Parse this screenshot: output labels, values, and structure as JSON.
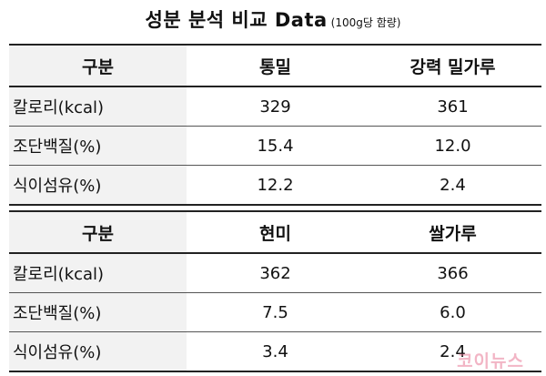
{
  "title": {
    "main": "성분 분석 비교 Data",
    "sub": "(100g당 함량)"
  },
  "table1": {
    "headers": [
      "구분",
      "통밀",
      "강력 밀가루"
    ],
    "rows": [
      [
        "칼로리(kcal)",
        "329",
        "361"
      ],
      [
        "조단백질(%)",
        "15.4",
        "12.0"
      ],
      [
        "식이섬유(%)",
        "12.2",
        "2.4"
      ]
    ]
  },
  "table2": {
    "headers": [
      "구분",
      "현미",
      "쌀가루"
    ],
    "rows": [
      [
        "칼로리(kcal)",
        "362",
        "366"
      ],
      [
        "조단백질(%)",
        "7.5",
        "6.0"
      ],
      [
        "식이섬유(%)",
        "3.4",
        "2.4"
      ]
    ]
  },
  "watermark": "코이뉴스",
  "colors": {
    "label_background": "#f2f2f2",
    "rule": "#222222",
    "watermark": "#e87896"
  }
}
